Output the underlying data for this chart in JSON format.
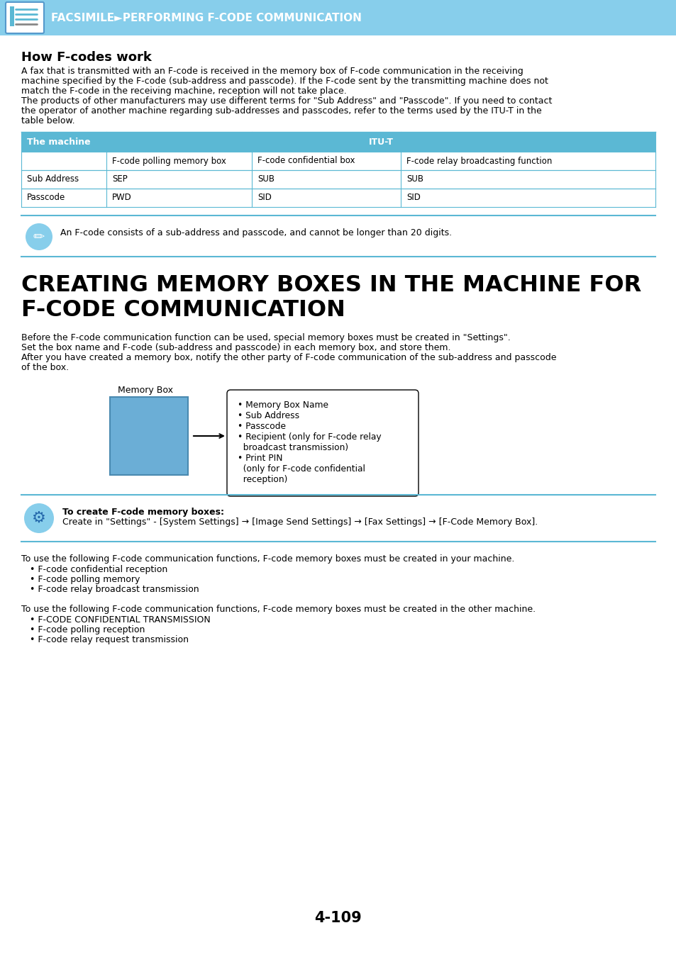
{
  "bg_color": "#ffffff",
  "header_bg": "#87CEEB",
  "header_label": "FACSIMILE►PERFORMING F-CODE COMMUNICATION",
  "section1_title": "How F-codes work",
  "section1_body": [
    "A fax that is transmitted with an F-code is received in the memory box of F-code communication in the receiving",
    "machine specified by the F-code (sub-address and passcode). If the F-code sent by the transmitting machine does not",
    "match the F-code in the receiving machine, reception will not take place.",
    "The products of other manufacturers may use different terms for \"Sub Address\" and \"Passcode\". If you need to contact",
    "the operator of another machine regarding sub-addresses and passcodes, refer to the terms used by the ITU-T in the",
    "table below."
  ],
  "table_header_bg": "#5bb8d4",
  "table_border_color": "#5bb8d4",
  "table_col0_header": "The machine",
  "table_col_span_header": "ITU-T",
  "table_rows": [
    [
      "",
      "F-code polling memory box",
      "F-code confidential box",
      "F-code relay broadcasting function"
    ],
    [
      "Sub Address",
      "SEP",
      "SUB",
      "SUB"
    ],
    [
      "Passcode",
      "PWD",
      "SID",
      "SID"
    ]
  ],
  "note_text": "An F-code consists of a sub-address and passcode, and cannot be longer than 20 digits.",
  "section2_title": "CREATING MEMORY BOXES IN THE MACHINE FOR\nF-CODE COMMUNICATION",
  "section2_body": [
    "Before the F-code communication function can be used, special memory boxes must be created in \"Settings\".",
    "Set the box name and F-code (sub-address and passcode) in each memory box, and store them.",
    "After you have created a memory box, notify the other party of F-code communication of the sub-address and passcode",
    "of the box."
  ],
  "memory_box_label": "Memory Box",
  "memory_box_items": [
    "• Memory Box Name",
    "• Sub Address",
    "• Passcode",
    "• Recipient (only for F-code relay",
    "  broadcast transmission)",
    "• Print PIN",
    "  (only for F-code confidential",
    "  reception)"
  ],
  "create_box_bold": "To create F-code memory boxes:",
  "create_box_text": "Create in \"Settings\" - [System Settings] → [Image Send Settings] → [Fax Settings] → [F-Code Memory Box].",
  "section3_body1_intro": "To use the following F-code communication functions, F-code memory boxes must be created in your machine.",
  "section3_body1_items": [
    "• F-code confidential reception",
    "• F-code polling memory",
    "• F-code relay broadcast transmission"
  ],
  "section3_body2_intro": "To use the following F-code communication functions, F-code memory boxes must be created in the other machine.",
  "section3_body2_items": [
    "• F-CODE CONFIDENTIAL TRANSMISSION",
    "• F-code polling reception",
    "• F-code relay request transmission"
  ],
  "page_number": "4-109",
  "light_blue": "#87CEEB",
  "medium_blue": "#5bb8d4",
  "box_fill": "#6baed6",
  "box_stroke": "#4a8ab0"
}
